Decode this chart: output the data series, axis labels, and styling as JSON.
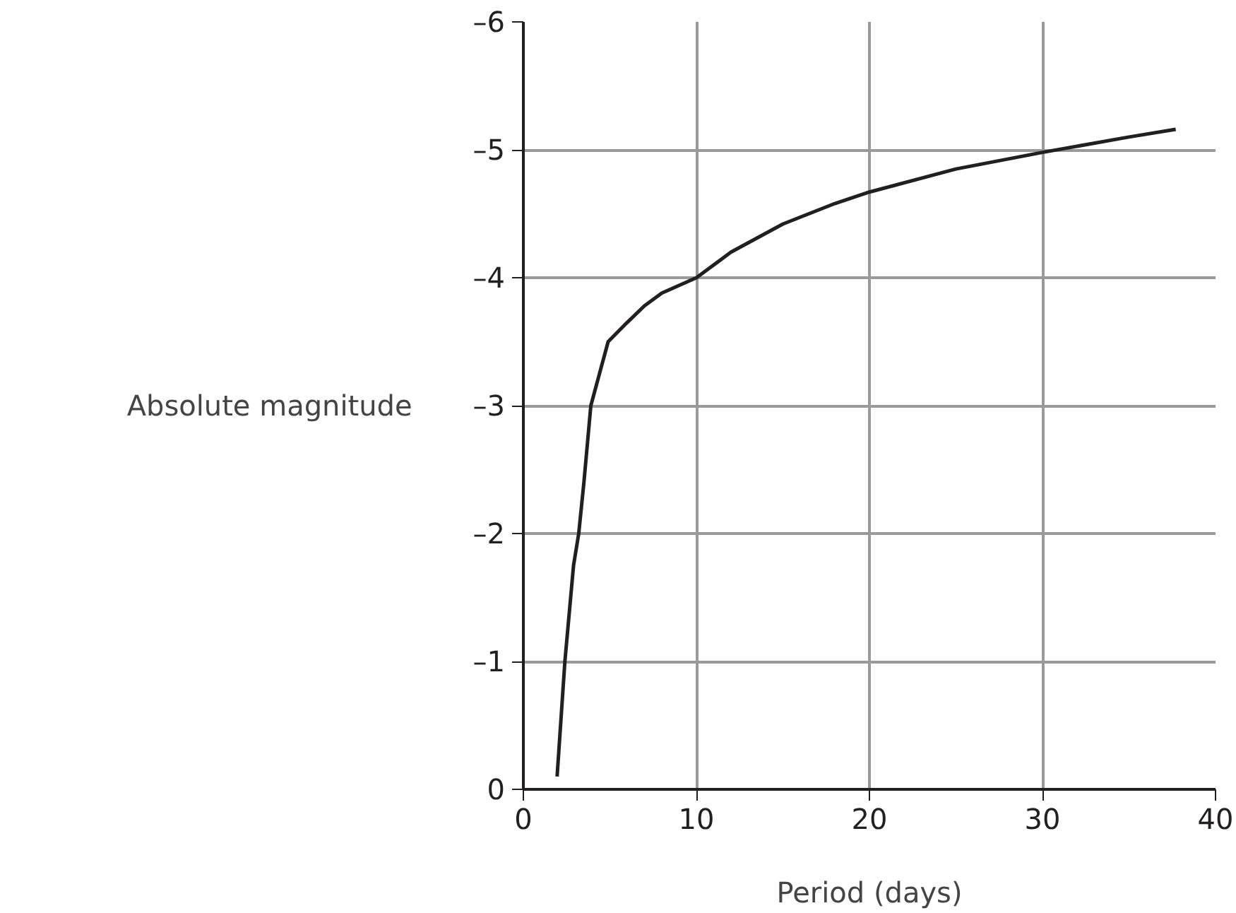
{
  "chart_data": {
    "type": "line",
    "xlabel": "Period (days)",
    "ylabel": "Absolute magnitude",
    "x": [
      1.95,
      2.4,
      2.9,
      3.2,
      3.5,
      3.9,
      4.5,
      4.9,
      6,
      7,
      8,
      10,
      12,
      15,
      18,
      20,
      25,
      30,
      35,
      37.7
    ],
    "series": [
      {
        "color": "#231f20",
        "values": [
          -0.1,
          -1.0,
          -1.75,
          -2.0,
          -2.4,
          -3.0,
          -3.3,
          -3.5,
          -3.65,
          -3.78,
          -3.88,
          -4.0,
          -4.2,
          -4.42,
          -4.58,
          -4.67,
          -4.85,
          -4.98,
          -5.1,
          -5.16
        ]
      }
    ],
    "xlim": [
      0,
      40
    ],
    "ylim": [
      0,
      -6
    ],
    "xticks": [
      0,
      10,
      20,
      30,
      40
    ],
    "yticks": [
      {
        "value": 0,
        "label": "0"
      },
      {
        "value": -1,
        "label": "–1"
      },
      {
        "value": -2,
        "label": "–2"
      },
      {
        "value": -3,
        "label": "–3"
      },
      {
        "value": -4,
        "label": "–4"
      },
      {
        "value": -5,
        "label": "–5"
      },
      {
        "value": -6,
        "label": "–6"
      }
    ],
    "grid": true,
    "marker": "none",
    "line_style": "solid"
  }
}
